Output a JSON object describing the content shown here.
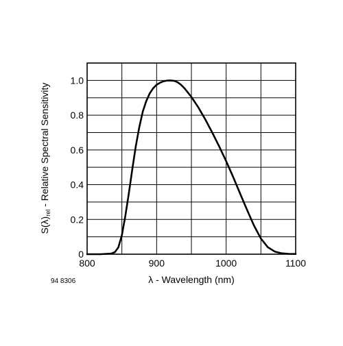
{
  "chart_data": {
    "type": "line",
    "title": "",
    "xlabel": "λ - Wavelength (nm)",
    "ylabel": {
      "prefix": "S(λ)",
      "subscript": "rel",
      "suffix": " - Relative Spectral Sensitivity"
    },
    "figure_code": "94 8306",
    "xlim": [
      800,
      1100
    ],
    "ylim": [
      0,
      1.1
    ],
    "x_ticks": [
      800,
      900,
      1000,
      1100
    ],
    "x_tick_labels": [
      "800",
      "900",
      "1000",
      "1100"
    ],
    "x_grid": [
      800,
      850,
      900,
      950,
      1000,
      1050,
      1100
    ],
    "y_ticks": [
      0,
      0.2,
      0.4,
      0.6,
      0.8,
      1.0
    ],
    "y_tick_labels": [
      "0",
      "0.2",
      "0.4",
      "0.6",
      "0.8",
      "1.0"
    ],
    "y_grid": [
      0,
      0.1,
      0.2,
      0.3,
      0.4,
      0.5,
      0.6,
      0.7,
      0.8,
      0.9,
      1.0,
      1.1
    ],
    "grid": true,
    "legend": "none",
    "series": [
      {
        "color": "#000000",
        "x": [
          800,
          820,
          835,
          840,
          845,
          850,
          855,
          860,
          865,
          870,
          875,
          880,
          885,
          890,
          895,
          900,
          905,
          910,
          915,
          920,
          925,
          930,
          935,
          940,
          950,
          960,
          970,
          980,
          990,
          1000,
          1010,
          1020,
          1030,
          1040,
          1050,
          1060,
          1070,
          1080,
          1090,
          1100
        ],
        "y": [
          0,
          0,
          0.004,
          0.012,
          0.04,
          0.11,
          0.22,
          0.35,
          0.49,
          0.62,
          0.73,
          0.82,
          0.88,
          0.925,
          0.955,
          0.975,
          0.987,
          0.995,
          0.999,
          1.0,
          0.998,
          0.99,
          0.975,
          0.955,
          0.905,
          0.845,
          0.775,
          0.7,
          0.62,
          0.535,
          0.445,
          0.35,
          0.255,
          0.165,
          0.09,
          0.04,
          0.015,
          0.005,
          0.002,
          0.001
        ]
      }
    ]
  }
}
